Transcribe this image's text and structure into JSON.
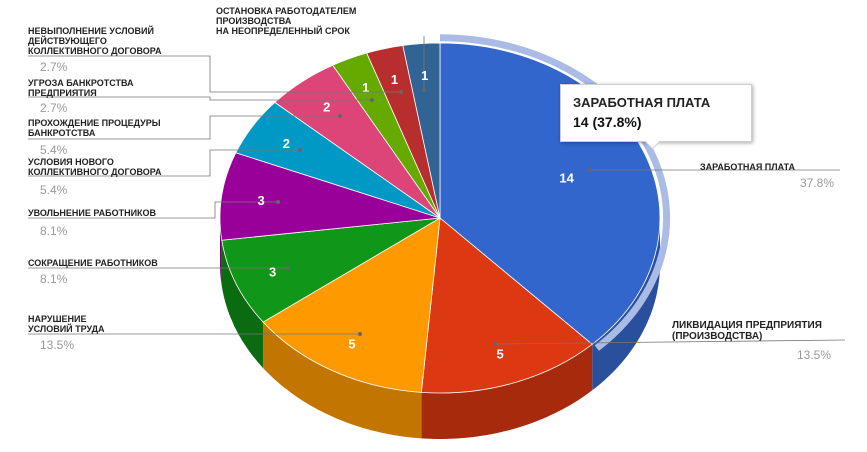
{
  "chart_data": {
    "type": "pie",
    "style": "3d",
    "legend": "none",
    "slices": [
      {
        "label": "ЗАРАБОТНАЯ ПЛАТА",
        "value": 14,
        "percent": "37.8%",
        "color": "#3366cc",
        "dark": "#2a4f9c"
      },
      {
        "label": "ЛИКВИДАЦИЯ ПРЕДПРИЯТИЯ\n(ПРОИЗВОДСТВА)",
        "value": 5,
        "percent": "13.5%",
        "color": "#dc3912",
        "dark": "#a82a0d"
      },
      {
        "label": "НАРУШЕНИЕ\nУСЛОВИЙ ТРУДА",
        "value": 5,
        "percent": "13.5%",
        "color": "#ff9900",
        "dark": "#c27600"
      },
      {
        "label": "СОКРАЩЕНИЕ РАБОТНИКОВ",
        "value": 3,
        "percent": "8.1%",
        "color": "#109618",
        "dark": "#0b6b11"
      },
      {
        "label": "УВОЛЬНЕНИЕ РАБОТНИКОВ",
        "value": 3,
        "percent": "8.1%",
        "color": "#990099",
        "dark": "#6e006e"
      },
      {
        "label": "УСЛОВИЯ НОВОГО\nКОЛЛЕКТИВНОГО ДОГОВОРА",
        "value": 2,
        "percent": "5.4%",
        "color": "#0099c6",
        "dark": "#00708f"
      },
      {
        "label": "ПРОХОЖДЕНИЕ ПРОЦЕДУРЫ\nБАНКРОТСТВА",
        "value": 2,
        "percent": "5.4%",
        "color": "#dd4477",
        "dark": "#a63258"
      },
      {
        "label": "УГРОЗА БАНКРОТСТВА\nПРЕДПРИЯТИЯ",
        "value": 1,
        "percent": "2.7%",
        "color": "#66aa00",
        "dark": "#4a7c00"
      },
      {
        "label": "НЕВЫПОЛНЕНИЕ УСЛОВИЙ\nДЕЙСТВУЮЩЕГО\nКОЛЛЕКТИВНОГО ДОГОВОРА",
        "value": 1,
        "percent": "2.7%",
        "color": "#b82e2e",
        "dark": "#862121"
      },
      {
        "label": "ОСТАНОВКА РАБОТОДАТЕЛЕМ\nПРОИЗВОДСТВА\nНА НЕОПРЕДЕЛЕННЫЙ СРОК",
        "value": 1,
        "percent": "",
        "color": "#316395",
        "dark": "#23476b"
      }
    ],
    "tooltip": {
      "label": "ЗАРАБОТНАЯ ПЛАТА",
      "value": "14 (37.8%)"
    }
  }
}
